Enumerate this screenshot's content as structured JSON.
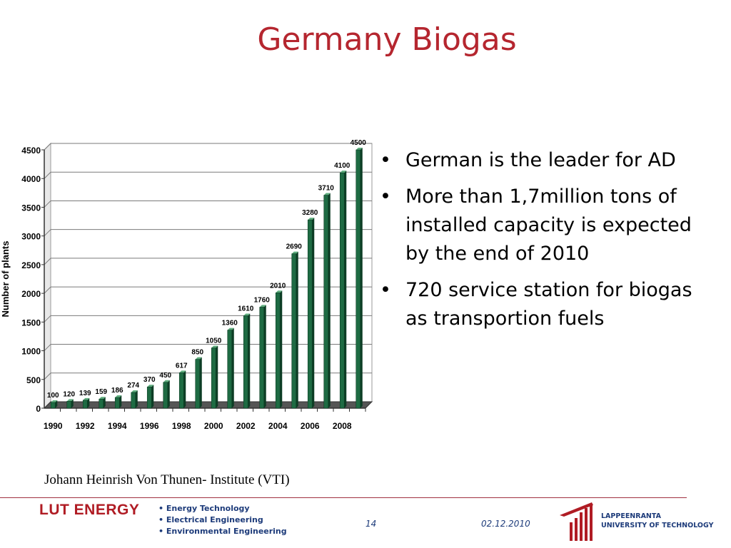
{
  "slide": {
    "title": "Germany Biogas",
    "bullets": [
      "German is the leader for AD",
      "More than 1,7million tons of installed capacity is expected by the end of 2010",
      " 720 service station for biogas as transportion fuels"
    ],
    "source": "Johann Heinrish Von Thunen- Institute (VTI)"
  },
  "footer": {
    "logo_text": "LUT ENERGY",
    "items": [
      "• Energy Technology",
      "• Electrical Engineering",
      "• Environmental Engineering"
    ],
    "page_number": "14",
    "date": "02.12.2010",
    "university_line1": "LAPPEENRANTA",
    "university_line2": "UNIVERSITY OF TECHNOLOGY"
  },
  "colors": {
    "title": "#b5262f",
    "bar": "#1e6b43",
    "footer_text": "#1d3b7a",
    "brand": "#b01c24"
  },
  "chart_data": {
    "type": "bar",
    "x": [
      1990,
      1991,
      1992,
      1993,
      1994,
      1995,
      1996,
      1997,
      1998,
      1999,
      2000,
      2001,
      2002,
      2003,
      2004,
      2005,
      2006,
      2007,
      2008,
      2009
    ],
    "values": [
      100,
      120,
      139,
      159,
      186,
      274,
      370,
      450,
      617,
      850,
      1050,
      1360,
      1610,
      1760,
      2010,
      2690,
      3280,
      3710,
      4100,
      4500
    ],
    "x_tick_labels": [
      "1990",
      "1992",
      "1994",
      "1996",
      "1998",
      "2000",
      "2002",
      "2004",
      "2006",
      "2008"
    ],
    "y_tick_labels": [
      "0",
      "500",
      "1000",
      "1500",
      "2000",
      "2500",
      "3000",
      "3500",
      "4000",
      "4500"
    ],
    "ylabel": "Number of plants",
    "xlabel": "",
    "ylim": [
      0,
      4500
    ],
    "grid": true
  }
}
